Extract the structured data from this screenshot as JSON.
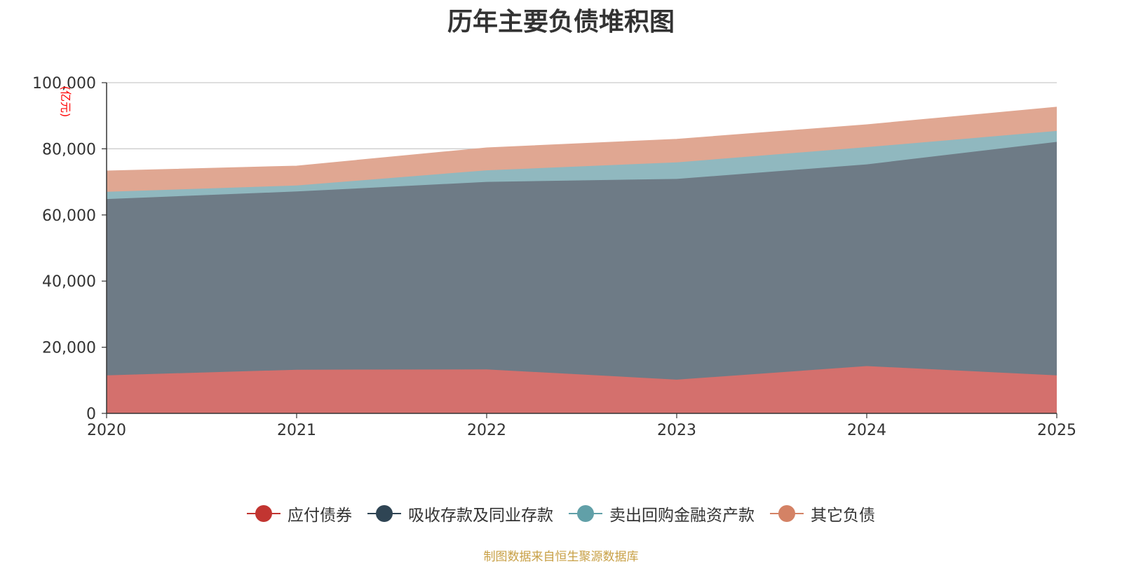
{
  "chart_data": {
    "type": "area",
    "stacked": true,
    "title": "历年主要负债堆积图",
    "ylabel": "亿元",
    "unit_label": "(亿元)",
    "xlabel": "",
    "x": [
      "2020",
      "2021",
      "2022",
      "2023",
      "2024",
      "2025"
    ],
    "ylim": [
      0,
      100000
    ],
    "yticks": [
      0,
      20000,
      40000,
      60000,
      80000,
      100000
    ],
    "ytick_labels": [
      "0",
      "20,000",
      "40,000",
      "60,000",
      "80,000",
      "100,000"
    ],
    "grid": true,
    "legend_position": "bottom",
    "series": [
      {
        "name": "应付债券",
        "color": "#c23531",
        "fill": "#d4706d",
        "values": [
          11500,
          13200,
          13300,
          10200,
          14300,
          11500
        ]
      },
      {
        "name": "吸收存款及同业存款",
        "color": "#2f4554",
        "fill": "#6e7b86",
        "values": [
          53300,
          53900,
          56700,
          60700,
          61000,
          70600
        ]
      },
      {
        "name": "卖出回购金融资产款",
        "color": "#61a0a8",
        "fill": "#90b8bf",
        "values": [
          2200,
          1800,
          3500,
          5000,
          5200,
          3300
        ]
      },
      {
        "name": "其它负债",
        "color": "#d48265",
        "fill": "#e0a792",
        "values": [
          6300,
          5900,
          6800,
          7000,
          6800,
          7200
        ]
      }
    ]
  },
  "footer": {
    "source": "制图数据来自恒生聚源数据库"
  }
}
